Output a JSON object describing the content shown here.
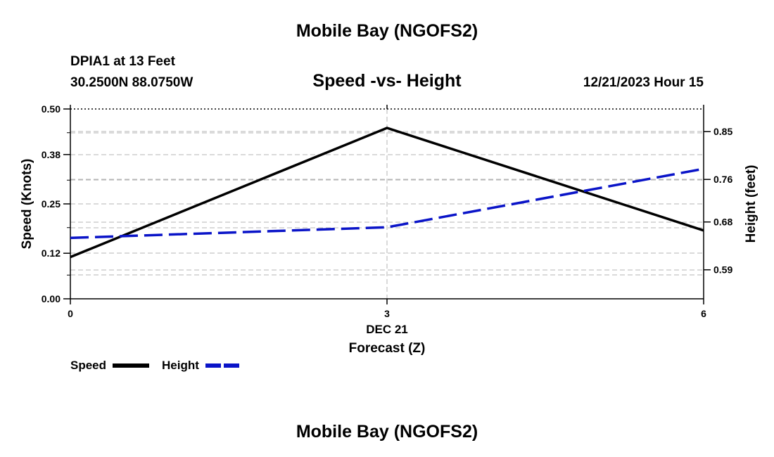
{
  "page": {
    "top_title": "Mobile Bay (NGOFS2)",
    "station": "DPIA1 at 13 Feet",
    "coords": "30.2500N  88.0750W",
    "date_hour": "12/21/2023 Hour 15",
    "bottom_title": "Mobile Bay (NGOFS2)"
  },
  "colors": {
    "speed": "#000000",
    "height": "#0a14c8",
    "grid": "#b4b4b4"
  },
  "chart_data": {
    "type": "line",
    "title": "Speed -vs- Height",
    "date_label": "DEC 21",
    "xlabel": "Forecast (Z)",
    "ylabel": "Speed (Knots)",
    "y2label": "Height (feet)",
    "x": [
      0,
      3,
      6
    ],
    "x_ticks": [
      "0",
      "3",
      "6"
    ],
    "xlim": [
      0,
      6
    ],
    "ylim": [
      0.0,
      0.5
    ],
    "y_ticks": [
      "0.00",
      "0.12",
      "0.25",
      "0.38",
      "0.50"
    ],
    "y2lim": [
      0.5354,
      0.8926
    ],
    "y2_ticks": [
      "0.59",
      "0.68",
      "0.76",
      "0.85"
    ],
    "series": [
      {
        "name": "Speed",
        "axis": "left",
        "style": "solid",
        "values": [
          0.11,
          0.45,
          0.18
        ]
      },
      {
        "name": "Height",
        "axis": "right",
        "style": "dashed",
        "values": [
          0.65,
          0.67,
          0.78
        ]
      }
    ],
    "legend": [
      {
        "label": "Speed"
      },
      {
        "label": "Height"
      }
    ],
    "grid": true
  }
}
